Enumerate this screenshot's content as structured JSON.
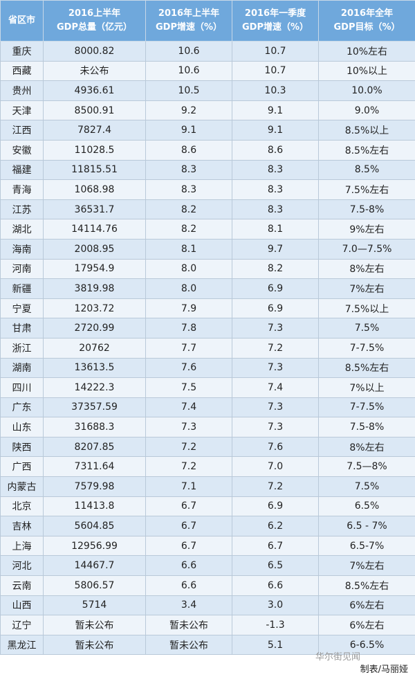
{
  "table": {
    "header": [
      [
        "省区市"
      ],
      [
        "2016上半年",
        "GDP总量（亿元）"
      ],
      [
        "2016年上半年",
        "GDP增速（%）"
      ],
      [
        "2016年一季度",
        "GDP增速（%）"
      ],
      [
        "2016年全年",
        "GDP目标（%）"
      ]
    ],
    "rows": [
      [
        "重庆",
        "8000.82",
        "10.6",
        "10.7",
        "10%左右"
      ],
      [
        "西藏",
        "未公布",
        "10.6",
        "10.7",
        "10%以上"
      ],
      [
        "贵州",
        "4936.61",
        "10.5",
        "10.3",
        "10.0%"
      ],
      [
        "天津",
        "8500.91",
        "9.2",
        "9.1",
        "9.0%"
      ],
      [
        "江西",
        "7827.4",
        "9.1",
        "9.1",
        "8.5%以上"
      ],
      [
        "安徽",
        "11028.5",
        "8.6",
        "8.6",
        "8.5%左右"
      ],
      [
        "福建",
        "11815.51",
        "8.3",
        "8.3",
        "8.5%"
      ],
      [
        "青海",
        "1068.98",
        "8.3",
        "8.3",
        "7.5%左右"
      ],
      [
        "江苏",
        "36531.7",
        "8.2",
        "8.3",
        "7.5-8%"
      ],
      [
        "湖北",
        "14114.76",
        "8.2",
        "8.1",
        "9%左右"
      ],
      [
        "海南",
        "2008.95",
        "8.1",
        "9.7",
        "7.0—7.5%"
      ],
      [
        "河南",
        "17954.9",
        "8.0",
        "8.2",
        "8%左右"
      ],
      [
        "新疆",
        "3819.98",
        "8.0",
        "6.9",
        "7%左右"
      ],
      [
        "宁夏",
        "1203.72",
        "7.9",
        "6.9",
        "7.5%以上"
      ],
      [
        "甘肃",
        "2720.99",
        "7.8",
        "7.3",
        "7.5%"
      ],
      [
        "浙江",
        "20762",
        "7.7",
        "7.2",
        "7-7.5%"
      ],
      [
        "湖南",
        "13613.5",
        "7.6",
        "7.3",
        "8.5%左右"
      ],
      [
        "四川",
        "14222.3",
        "7.5",
        "7.4",
        "7%以上"
      ],
      [
        "广东",
        "37357.59",
        "7.4",
        "7.3",
        "7-7.5%"
      ],
      [
        "山东",
        "31688.3",
        "7.3",
        "7.3",
        "7.5-8%"
      ],
      [
        "陕西",
        "8207.85",
        "7.2",
        "7.6",
        "8%左右"
      ],
      [
        "广西",
        "7311.64",
        "7.2",
        "7.0",
        "7.5—8%"
      ],
      [
        "内蒙古",
        "7579.98",
        "7.1",
        "7.2",
        "7.5%"
      ],
      [
        "北京",
        "11413.8",
        "6.7",
        "6.9",
        "6.5%"
      ],
      [
        "吉林",
        "5604.85",
        "6.7",
        "6.2",
        "6.5 - 7%"
      ],
      [
        "上海",
        "12956.99",
        "6.7",
        "6.7",
        "6.5-7%"
      ],
      [
        "河北",
        "14467.7",
        "6.6",
        "6.5",
        "7%左右"
      ],
      [
        "云南",
        "5806.57",
        "6.6",
        "6.6",
        "8.5%左右"
      ],
      [
        "山西",
        "5714",
        "3.4",
        "3.0",
        "6%左右"
      ],
      [
        "辽宁",
        "暂未公布",
        "暂未公布",
        "-1.3",
        "6%左右"
      ],
      [
        "黑龙江",
        "暂未公布",
        "暂未公布",
        "5.1",
        "6-6.5%"
      ]
    ]
  },
  "footer": {
    "source": "华尔街见闻",
    "credit": "制表/马丽娅"
  }
}
